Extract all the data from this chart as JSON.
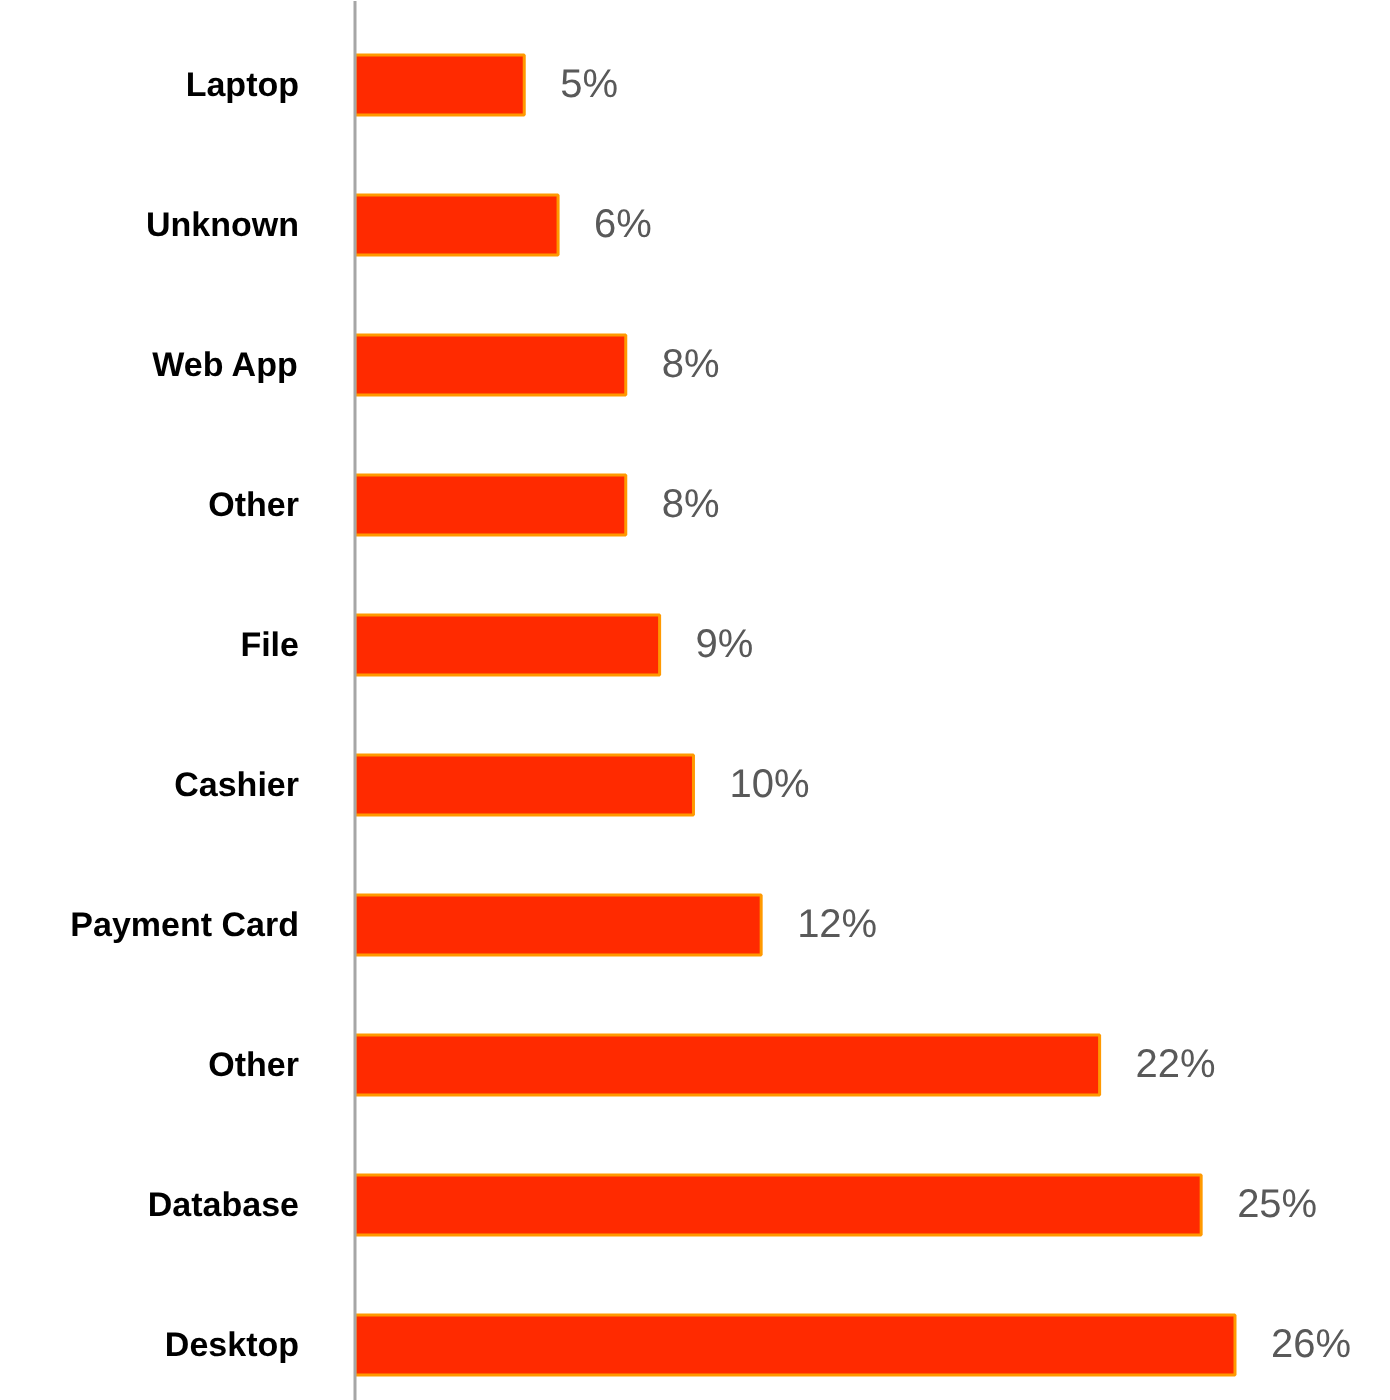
{
  "chart_data": {
    "type": "bar",
    "orientation": "horizontal",
    "categories": [
      "Laptop",
      "Unknown",
      "Web App",
      "Other",
      "File",
      "Cashier",
      "Payment Card",
      "Other",
      "Database",
      "Desktop"
    ],
    "values": [
      5,
      6,
      8,
      8,
      9,
      10,
      12,
      22,
      25,
      26
    ],
    "value_labels": [
      "5%",
      "6%",
      "8%",
      "8%",
      "9%",
      "10%",
      "12%",
      "22%",
      "25%",
      "26%"
    ],
    "color": "#ff2a00",
    "grid": false
  }
}
